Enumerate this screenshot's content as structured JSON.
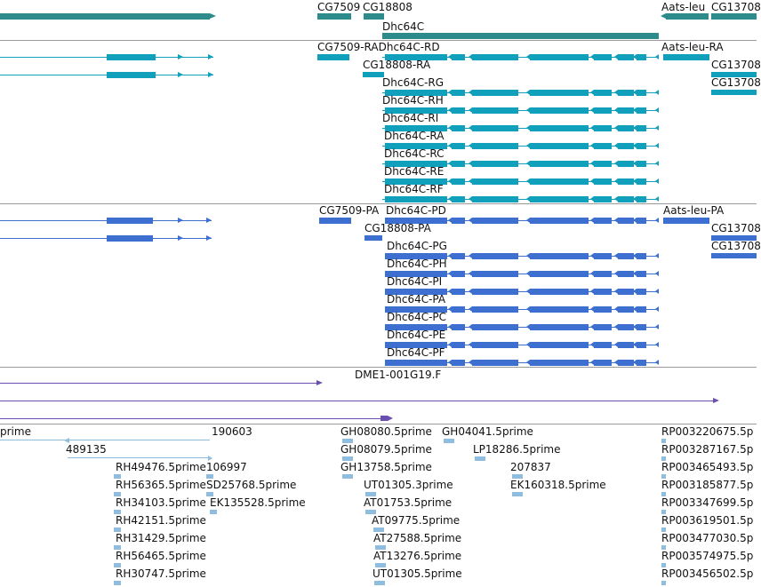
{
  "colors": {
    "gene": "#2e8b8c",
    "transcript": "#11a0bc",
    "protein": "#3c6fd0",
    "clone": "#6a4fb0",
    "est": "#8fbde0",
    "separator": "#9a9a9a"
  },
  "tracks": {
    "genes": {
      "labels": {
        "cg7509": "CG7509",
        "cg18808": "CG18808",
        "dhc64c": "Dhc64C",
        "aats_leu": "Aats-leu",
        "cg13708": "CG13708"
      }
    },
    "transcripts": {
      "labels": {
        "cg7509_ra_dhc64c_rd": "CG7509-RADhc64C-RD",
        "aats_leu_ra": "Aats-leu-RA",
        "cg18808_ra": "CG18808-RA",
        "cg13708_a": "CG13708",
        "cg13708_b": "CG13708",
        "rg": "Dhc64C-RG",
        "rh": "Dhc64C-RH",
        "ri": "Dhc64C-RI",
        "ra": "Dhc64C-RA",
        "rc": "Dhc64C-RC",
        "re": "Dhc64C-RE",
        "rf": "Dhc64C-RF"
      }
    },
    "proteins": {
      "labels": {
        "cg7509_pa": "CG7509-PA",
        "dhc64c_pd": "Dhc64C-PD",
        "aats_leu_pa": "Aats-leu-PA",
        "cg18808_pa": "CG18808-PA",
        "cg13708_a": "CG13708",
        "cg13708_b": "CG13708",
        "pg": "Dhc64C-PG",
        "ph": "Dhc64C-PH",
        "pi": "Dhc64C-PI",
        "pa": "Dhc64C-PA",
        "pc": "Dhc64C-PC",
        "pe": "Dhc64C-PE",
        "pf": "Dhc64C-PF"
      }
    },
    "clones": {
      "labels": {
        "dme1": "DME1-001G19.F"
      }
    },
    "ests": {
      "labels": {
        "prime": "prime",
        "e190603": "190603",
        "e489135": "489135",
        "gh08080": "GH08080.5prime",
        "gh04041": "GH04041.5prime",
        "gh08079": "GH08079.5prime",
        "lp18286": "LP18286.5prime",
        "rh49476": "RH49476.5prime",
        "e106997": "106997",
        "gh13758": "GH13758.5prime",
        "e207837": "207837",
        "rh56365": "RH56365.5prime",
        "sd25768": "SD25768.5prime",
        "ut01305_3": "UT01305.3prime",
        "ek160318": "EK160318.5prime",
        "rh34103": "RH34103.5prime",
        "ek135528": "EK135528.5prime",
        "at01753": "AT01753.5prime",
        "rh42151": "RH42151.5prime",
        "at09775": "AT09775.5prime",
        "rh31429": "RH31429.5prime",
        "at27588": "AT27588.5prime",
        "rh56465": "RH56465.5prime",
        "at13276": "AT13276.5prime",
        "rh30747": "RH30747.5prime",
        "ut01305_5": "UT01305.5prime",
        "rp3220675": "RP003220675.5p",
        "rp3287167": "RP003287167.5p",
        "rp3465493": "RP003465493.5p",
        "rp3185877": "RP003185877.5p",
        "rp3347699": "RP003347699.5p",
        "rp3619501": "RP003619501.5p",
        "rp3477030": "RP003477030.5p",
        "rp3574975": "RP003574975.5p",
        "rp3456502": "RP003456502.5p"
      }
    }
  }
}
